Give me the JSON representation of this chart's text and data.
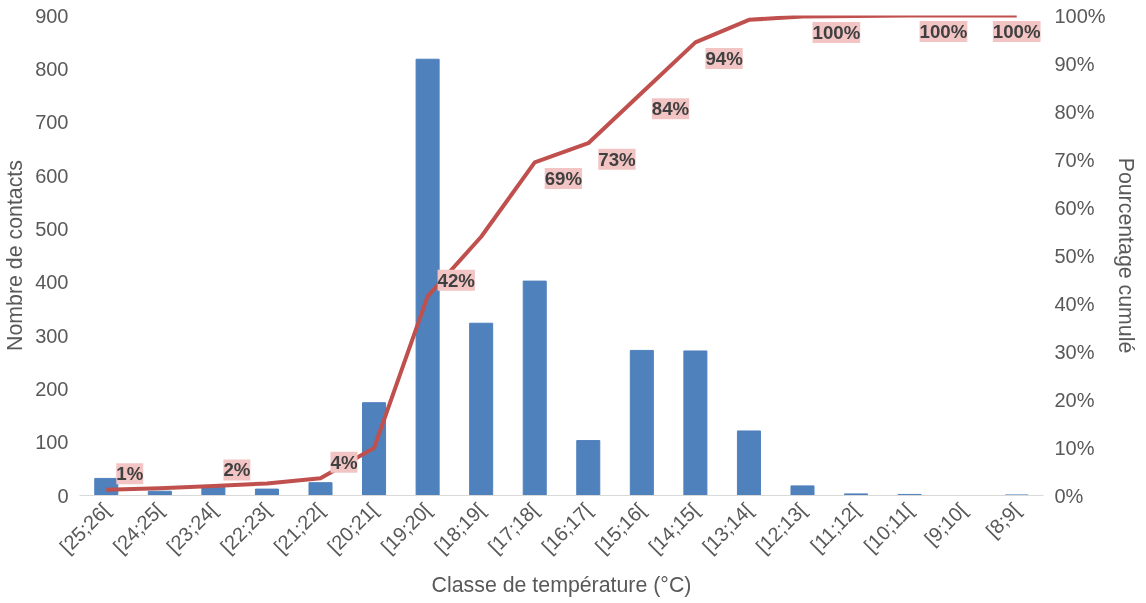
{
  "chart_data": {
    "type": "bar",
    "xlabel": "Classe de température (°C)",
    "ylabel": "Nombre de contacts",
    "y2label": "Pourcentage cumulé",
    "categories": [
      "[25;26[",
      "[24;25[",
      "[23;24[",
      "[22;23[",
      "[21;22[",
      "[20;21[",
      "[19;20[",
      "[18;19[",
      "[17;18[",
      "[16;17[",
      "[15;16[",
      "[14;15[",
      "[13;14[",
      "[12;13[",
      "[11;12[",
      "[10;11[",
      "[9;10[",
      "[8;9["
    ],
    "ylim": [
      0,
      900
    ],
    "yticks": [
      0,
      100,
      200,
      300,
      400,
      500,
      600,
      700,
      800,
      900
    ],
    "y2lim": [
      0,
      100
    ],
    "y2ticks": [
      {
        "value": 0,
        "label": "0%"
      },
      {
        "value": 10,
        "label": "10%"
      },
      {
        "value": 20,
        "label": "20%"
      },
      {
        "value": 30,
        "label": "30%"
      },
      {
        "value": 40,
        "label": "40%"
      },
      {
        "value": 50,
        "label": "50%"
      },
      {
        "value": 60,
        "label": "60%"
      },
      {
        "value": 70,
        "label": "70%"
      },
      {
        "value": 80,
        "label": "80%"
      },
      {
        "value": 90,
        "label": "90%"
      },
      {
        "value": 100,
        "label": "100%"
      }
    ],
    "grid": false,
    "series": [
      {
        "color": "#4f81bd",
        "values": [
          32,
          8,
          15,
          12,
          24,
          174,
          818,
          323,
          402,
          103,
          272,
          271,
          121,
          18,
          3,
          2,
          0,
          1
        ]
      },
      {
        "type": "line",
        "axis": "y2",
        "color": "#c0504d",
        "marker": "none",
        "line_style": "solid",
        "values": [
          1.2,
          1.5,
          2.0,
          2.5,
          3.6,
          9.9,
          41.5,
          53.9,
          69.4,
          73.4,
          83.9,
          94.4,
          99.1,
          99.8,
          99.9,
          100,
          100,
          100
        ],
        "value_labels": [
          "1%",
          null,
          "2%",
          null,
          "4%",
          null,
          "42%",
          null,
          "69%",
          "73%",
          "84%",
          "94%",
          null,
          "100%",
          null,
          "100%",
          null,
          "100%"
        ]
      }
    ]
  }
}
